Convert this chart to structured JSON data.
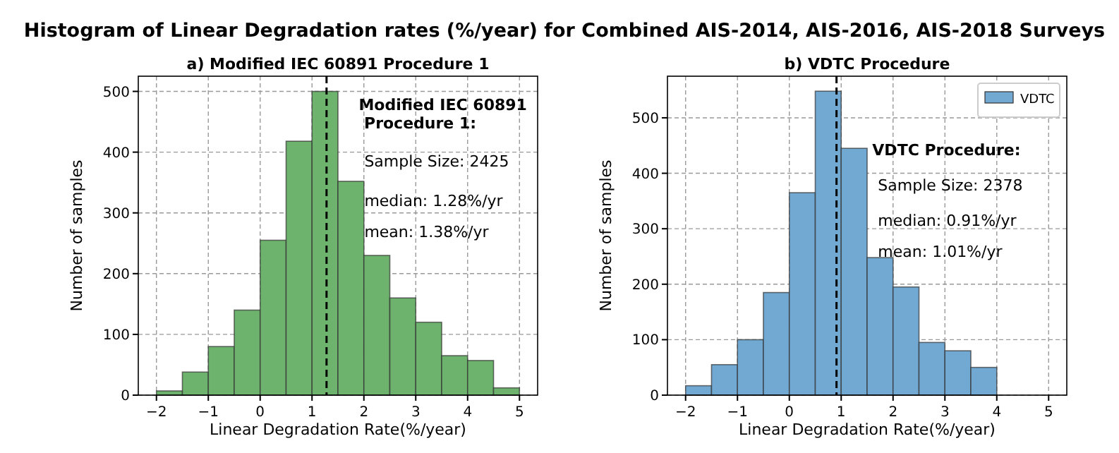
{
  "chart_data": [
    {
      "type": "histogram",
      "title": "Histogram of Linear Degradation rates (%/year) for Combined AIS-2014, AIS-2016, AIS-2018 Surveys",
      "subtitle": "a) Modified IEC 60891 Procedure 1",
      "xlabel": "Linear Degradation Rate(%/year)",
      "ylabel": "Number of samples",
      "bins": [
        -2,
        -1.5,
        -1,
        -0.5,
        0,
        0.5,
        1,
        1.5,
        2,
        2.5,
        3,
        3.5,
        4,
        4.5,
        5
      ],
      "values": [
        7,
        38,
        80,
        140,
        255,
        418,
        500,
        352,
        230,
        160,
        120,
        65,
        57,
        12
      ],
      "color": "#6db36d",
      "xlim": [
        -2.35,
        5.35
      ],
      "xticks": [
        -2,
        -1,
        0,
        1,
        2,
        3,
        4,
        5
      ],
      "ylim": [
        0,
        525
      ],
      "yticks": [
        0,
        100,
        200,
        300,
        400,
        500
      ],
      "grid": true,
      "legend": false,
      "ref_lines": [
        {
          "axis": "x",
          "value": 1.28,
          "color": "#000000",
          "line_style": "dashed"
        }
      ],
      "annotations": [
        "Modified IEC 60891\n Procedure 1:",
        "Sample Size: 2425",
        "median: 1.28%/yr",
        "mean: 1.38%/yr"
      ]
    },
    {
      "type": "histogram",
      "title": "b) VDTC Procedure",
      "xlabel": "Linear Degradation Rate(%/year)",
      "ylabel": "Number of samples",
      "series": [
        {
          "name": "VDTC",
          "color": "#72a9d3",
          "values": [
            17,
            55,
            100,
            185,
            365,
            548,
            445,
            248,
            195,
            95,
            80,
            50
          ]
        }
      ],
      "bins": [
        -2,
        -1.5,
        -1,
        -0.5,
        0,
        0.5,
        1,
        1.5,
        2,
        2.5,
        3,
        3.5,
        4
      ],
      "xlim": [
        -2.35,
        5.35
      ],
      "xticks": [
        -2,
        -1,
        0,
        1,
        2,
        3,
        4,
        5
      ],
      "ylim": [
        0,
        575
      ],
      "yticks": [
        0,
        100,
        200,
        300,
        400,
        500
      ],
      "grid": true,
      "legend": "top right",
      "ref_lines": [
        {
          "axis": "x",
          "value": 0.91,
          "color": "#000000",
          "line_style": "dashed"
        }
      ],
      "annotations": [
        "VDTC Procedure:",
        "Sample Size: 2378",
        "median: 0.91%/yr",
        "mean: 1.01%/yr"
      ]
    }
  ]
}
